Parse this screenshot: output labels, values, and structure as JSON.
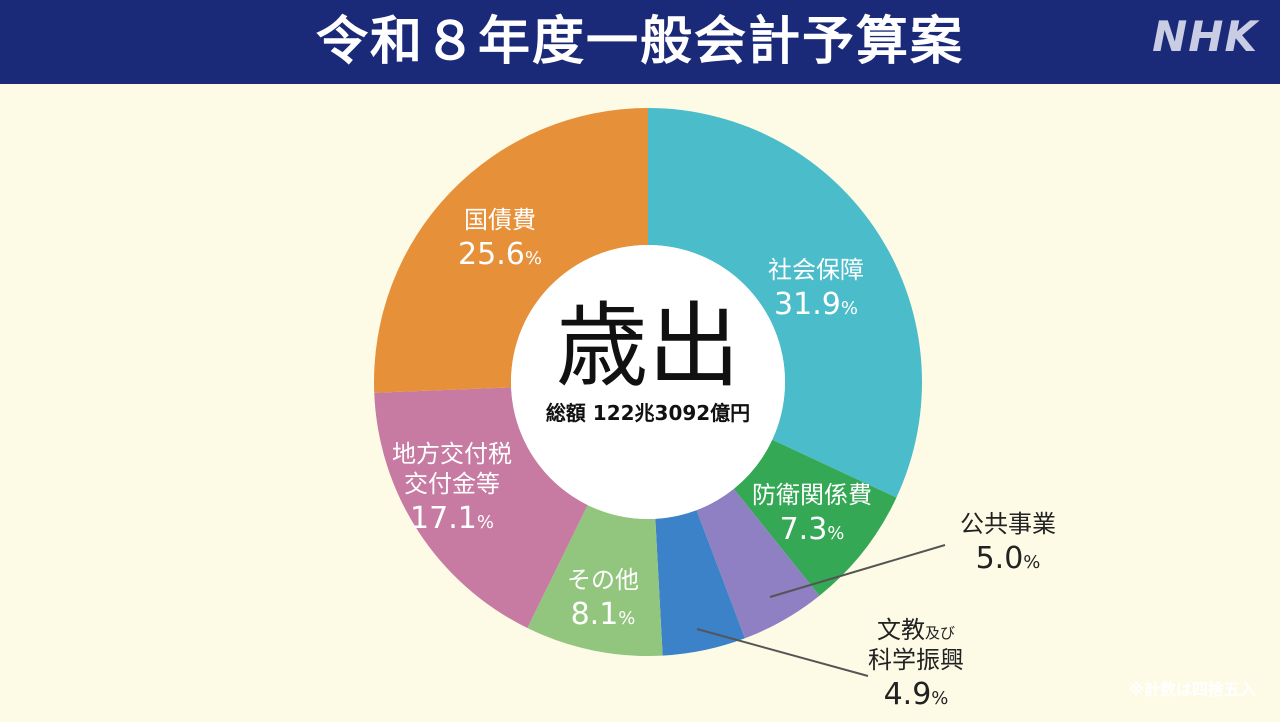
{
  "header": {
    "title": "令和８年度一般会計予算案",
    "logo": "NHK"
  },
  "center": {
    "label": "歳出",
    "total": "総額 122兆3092億円"
  },
  "footnote": "※計数は四捨五入",
  "chart_data": {
    "type": "pie",
    "title": "令和８年度一般会計予算案",
    "subtitle": "歳出",
    "annotation": "総額 122兆3092億円",
    "unit": "%",
    "slices": [
      {
        "label": [
          "社会保障"
        ],
        "value": 31.9,
        "display": "31.9",
        "color": "#4bbcca"
      },
      {
        "label": [
          "防衛関係費"
        ],
        "value": 7.3,
        "display": "7.3",
        "color": "#35a855"
      },
      {
        "label": [
          "公共事業"
        ],
        "value": 5.0,
        "display": "5.0",
        "color": "#8f7fc3"
      },
      {
        "label": [
          "文教及び",
          "科学振興"
        ],
        "value": 4.9,
        "display": "4.9",
        "color": "#3b82c8"
      },
      {
        "label": [
          "その他"
        ],
        "value": 8.1,
        "display": "8.1",
        "color": "#92c57e"
      },
      {
        "label": [
          "地方交付税",
          "交付金等"
        ],
        "value": 17.1,
        "display": "17.1",
        "color": "#c77ba2"
      },
      {
        "label": [
          "国債費"
        ],
        "value": 25.6,
        "display": "25.6",
        "color": "#e6903a"
      }
    ]
  }
}
